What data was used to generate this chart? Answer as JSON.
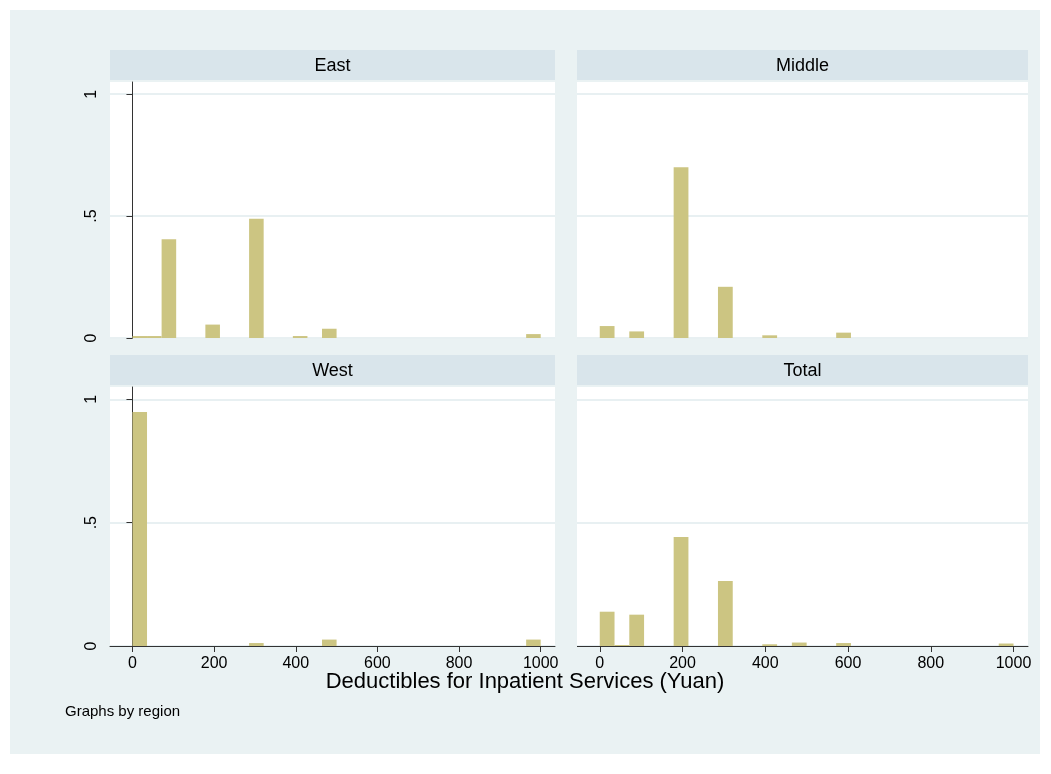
{
  "chart_data": [
    {
      "type": "histogram",
      "title": "East",
      "bins": [
        0,
        35.7,
        71.4,
        107.1,
        142.9,
        178.6,
        214.3,
        250,
        285.7,
        321.4,
        357.1,
        392.9,
        428.6,
        464.3,
        500,
        535.7,
        571.4,
        607.1,
        642.9,
        678.6,
        714.3,
        750,
        785.7,
        821.4,
        857.1,
        892.9,
        928.6,
        964.3,
        1000
      ],
      "values": [
        0.008,
        0.008,
        0.405,
        0,
        0,
        0.055,
        0,
        0,
        0.489,
        0,
        0,
        0.008,
        0,
        0.038,
        0,
        0,
        0,
        0,
        0,
        0,
        0,
        0,
        0,
        0,
        0,
        0,
        0,
        0.016
      ],
      "color": "#ccc582",
      "xlim": [
        -55,
        1035
      ],
      "ylim": [
        0,
        1.05
      ],
      "xticks": [
        0,
        200,
        400,
        600,
        800,
        1000
      ],
      "yticks": [
        0,
        {
          "value": 0.5,
          "label": ".5"
        },
        1
      ],
      "grid": "y",
      "tick_labels": "y"
    },
    {
      "type": "histogram",
      "title": "Middle",
      "bins": [
        0,
        35.7,
        71.4,
        107.1,
        142.9,
        178.6,
        214.3,
        250,
        285.7,
        321.4,
        357.1,
        392.9,
        428.6,
        464.3,
        500,
        535.7,
        571.4,
        607.1,
        642.9,
        678.6,
        714.3,
        750,
        785.7,
        821.4,
        857.1,
        892.9,
        928.6,
        964.3,
        1000
      ],
      "values": [
        0.049,
        0,
        0.027,
        0,
        0,
        0.7,
        0,
        0,
        0.21,
        0,
        0,
        0.011,
        0,
        0,
        0,
        0,
        0.022,
        0,
        0,
        0,
        0,
        0,
        0,
        0,
        0,
        0,
        0,
        0
      ],
      "color": "#ccc582",
      "xlim": [
        -55,
        1035
      ],
      "ylim": [
        0,
        1.05
      ],
      "xticks": [
        0,
        200,
        400,
        600,
        800,
        1000
      ],
      "yticks": [
        0,
        0.5,
        1
      ],
      "grid": "y",
      "tick_labels": false
    },
    {
      "type": "histogram",
      "title": "West",
      "bins": [
        0,
        35.7,
        71.4,
        107.1,
        142.9,
        178.6,
        214.3,
        250,
        285.7,
        321.4,
        357.1,
        392.9,
        428.6,
        464.3,
        500,
        535.7,
        571.4,
        607.1,
        642.9,
        678.6,
        714.3,
        750,
        785.7,
        821.4,
        857.1,
        892.9,
        928.6,
        964.3,
        1000
      ],
      "values": [
        0.949,
        0,
        0,
        0,
        0,
        0,
        0,
        0,
        0.012,
        0,
        0,
        0,
        0,
        0.026,
        0,
        0,
        0,
        0,
        0,
        0,
        0,
        0,
        0,
        0,
        0,
        0,
        0,
        0.026
      ],
      "color": "#ccc582",
      "xlim": [
        -55,
        1035
      ],
      "ylim": [
        0,
        1.05
      ],
      "xticks": [
        0,
        200,
        400,
        600,
        800,
        1000
      ],
      "yticks": [
        0,
        {
          "value": 0.5,
          "label": ".5"
        },
        1
      ],
      "grid": "y"
    },
    {
      "type": "histogram",
      "title": "Total",
      "xlabel": "Deductibles for Inpatient Services (Yuan)",
      "annotations": [
        "Graphs by region"
      ],
      "bins": [
        0,
        35.7,
        71.4,
        107.1,
        142.9,
        178.6,
        214.3,
        250,
        285.7,
        321.4,
        357.1,
        392.9,
        428.6,
        464.3,
        500,
        535.7,
        571.4,
        607.1,
        642.9,
        678.6,
        714.3,
        750,
        785.7,
        821.4,
        857.1,
        892.9,
        928.6,
        964.3,
        1000
      ],
      "values": [
        0.139,
        0.004,
        0.127,
        0,
        0,
        0.442,
        0,
        0,
        0.264,
        0,
        0,
        0.007,
        0,
        0.014,
        0,
        0,
        0.012,
        0,
        0,
        0,
        0,
        0,
        0,
        0,
        0,
        0,
        0,
        0.01
      ],
      "color": "#ccc582",
      "xlim": [
        -55,
        1035
      ],
      "ylim": [
        0,
        1.05
      ],
      "xticks": [
        0,
        200,
        400,
        600,
        800,
        1000
      ],
      "yticks": [
        0,
        0.5,
        1
      ],
      "grid": "y",
      "tick_labels": "x"
    }
  ]
}
